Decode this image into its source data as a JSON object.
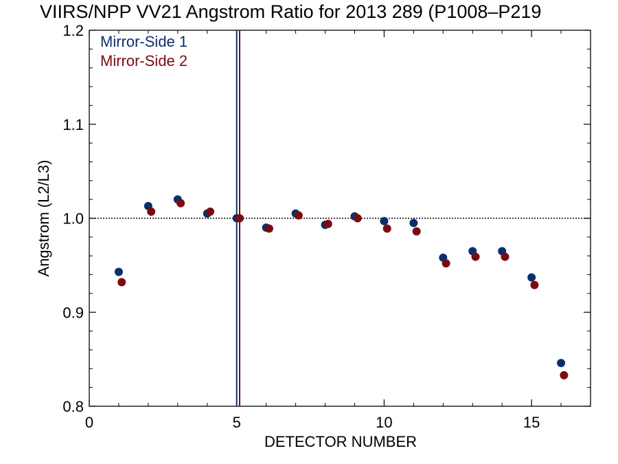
{
  "chart_data": {
    "type": "scatter",
    "title": "VIIRS/NPP VV21 Angstrom Ratio for 2013 289 (P1008–P219",
    "xlabel": "DETECTOR NUMBER",
    "ylabel": "Angstrom (L2/L3)",
    "xlim": [
      0,
      17
    ],
    "ylim": [
      0.8,
      1.2
    ],
    "xticks": [
      "0",
      "5",
      "10",
      "15"
    ],
    "yticks": [
      "0.8",
      "0.9",
      "1.0",
      "1.1",
      "1.2"
    ],
    "legend_position": "top-left",
    "reference_line": {
      "y": 1.0,
      "style": "dotted"
    },
    "vertical_lines": [
      {
        "series": "Mirror-Side 1",
        "x": 5.0
      },
      {
        "series": "Mirror-Side 2",
        "x": 5.1
      }
    ],
    "series": [
      {
        "name": "Mirror-Side 1",
        "color": "#0b2f6b",
        "x": [
          1,
          2,
          3,
          4,
          5,
          6,
          7,
          8,
          9,
          10,
          11,
          12,
          13,
          14,
          15,
          16
        ],
        "y": [
          0.943,
          1.013,
          1.02,
          1.005,
          1.0,
          0.99,
          1.005,
          0.993,
          1.002,
          0.997,
          0.995,
          0.958,
          0.965,
          0.965,
          0.937,
          0.846
        ]
      },
      {
        "name": "Mirror-Side 2",
        "color": "#7a0c10",
        "x": [
          1.1,
          2.1,
          3.1,
          4.1,
          5.1,
          6.1,
          7.1,
          8.1,
          9.1,
          10.1,
          11.1,
          12.1,
          13.1,
          14.1,
          15.1,
          16.1
        ],
        "y": [
          0.932,
          1.007,
          1.016,
          1.007,
          1.0,
          0.989,
          1.003,
          0.994,
          1.0,
          0.989,
          0.986,
          0.952,
          0.959,
          0.959,
          0.929,
          0.833
        ]
      }
    ]
  }
}
